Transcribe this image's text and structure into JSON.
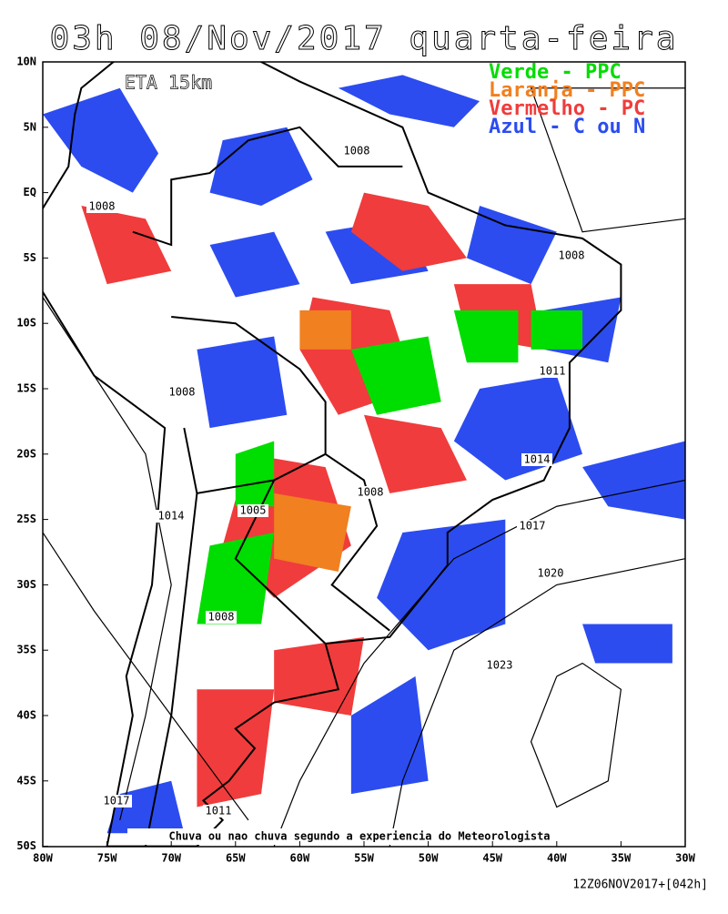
{
  "title": "03h 08/Nov/2017 quarta-feira",
  "model_label": "ETA 15km",
  "legend": [
    {
      "label": "Verde - PPC",
      "color": "#00dd00"
    },
    {
      "label": "Laranja - PPC",
      "color": "#f08020"
    },
    {
      "label": "Vermelho - PC",
      "color": "#f03c3c"
    },
    {
      "label": "Azul - C ou N",
      "color": "#2c4cf0"
    }
  ],
  "lat_labels": [
    "10N",
    "5N",
    "EQ",
    "5S",
    "10S",
    "15S",
    "20S",
    "25S",
    "30S",
    "35S",
    "40S",
    "45S",
    "50S"
  ],
  "lon_labels": [
    "80W",
    "75W",
    "70W",
    "65W",
    "60W",
    "55W",
    "50W",
    "45W",
    "40W",
    "35W",
    "30W"
  ],
  "isobar_labels": [
    "1008",
    "1008",
    "1008",
    "1011",
    "1008",
    "1014",
    "1008",
    "1005",
    "1014",
    "1017",
    "1020",
    "1008",
    "1023",
    "1017",
    "1011"
  ],
  "note": "Chuva ou nao chuva segundo a experiencia do Meteorologista",
  "run_info": "12Z06NOV2017+[042h]"
}
